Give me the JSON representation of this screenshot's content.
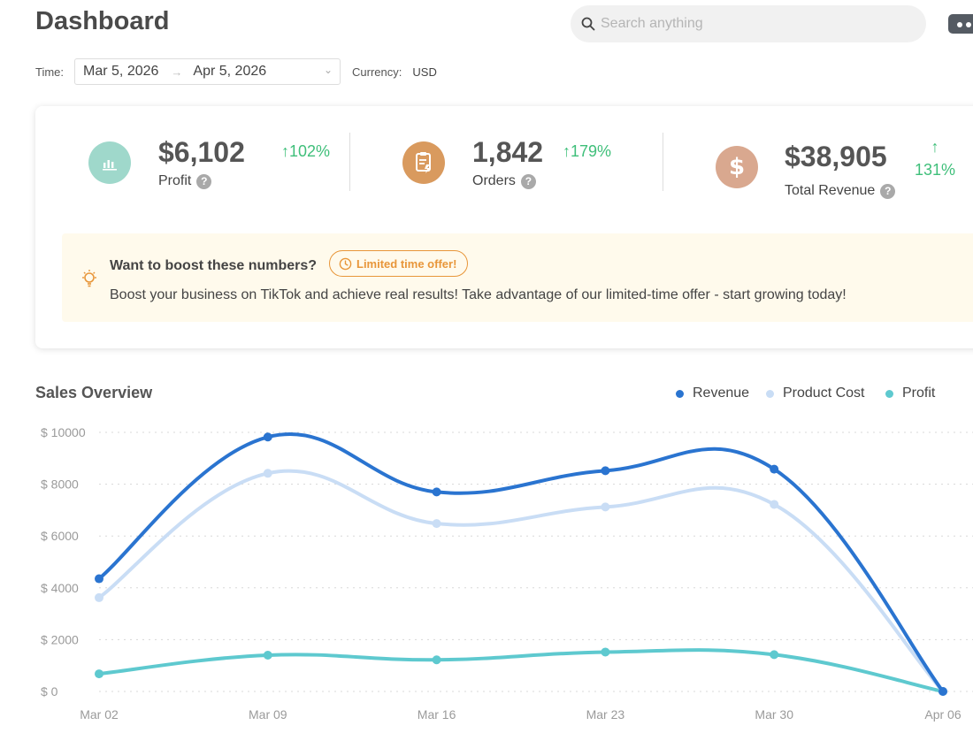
{
  "header": {
    "title": "Dashboard",
    "search_placeholder": "Search anything"
  },
  "filters": {
    "time_label": "Time:",
    "date_start": "Mar 5, 2026",
    "date_end": "Apr 5, 2026",
    "arrow": "→",
    "currency_label": "Currency:",
    "currency_value": "USD"
  },
  "kpis": [
    {
      "value": "$6,102",
      "label": "Profit",
      "delta": "102%",
      "icon": "bar-chart-icon",
      "color": "#9fd8cb"
    },
    {
      "value": "1,842",
      "label": "Orders",
      "delta": "179%",
      "icon": "clipboard-icon",
      "color": "#d99a5e"
    },
    {
      "value": "$38,905",
      "label": "Total Revenue",
      "delta": "131%",
      "icon": "dollar-icon",
      "color": "#d9a88f"
    }
  ],
  "promo": {
    "title": "Want to boost these numbers?",
    "badge": "Limited time offer!",
    "text": "Boost your business on TikTok and achieve real results! Take advantage of our limited-time offer - start growing today!"
  },
  "sales": {
    "title": "Sales Overview"
  },
  "chart_data": {
    "type": "line",
    "x": [
      "Mar 02",
      "Mar 09",
      "Mar 16",
      "Mar 23",
      "Mar 30",
      "Apr 06"
    ],
    "y_ticks": [
      "$ 0",
      "$ 2000",
      "$ 4000",
      "$ 6000",
      "$ 8000",
      "$ 10000"
    ],
    "ylim": [
      0,
      10000
    ],
    "grid": true,
    "legend": "top-right",
    "series": [
      {
        "name": "Revenue",
        "color": "#2a74d0",
        "values": [
          4350,
          9820,
          7700,
          8520,
          8580,
          0
        ]
      },
      {
        "name": "Product Cost",
        "color": "#c9ddf5",
        "values": [
          3620,
          8420,
          6480,
          7120,
          7220,
          0
        ]
      },
      {
        "name": "Profit",
        "color": "#5ec9cf",
        "values": [
          680,
          1400,
          1220,
          1520,
          1420,
          0
        ]
      }
    ]
  }
}
